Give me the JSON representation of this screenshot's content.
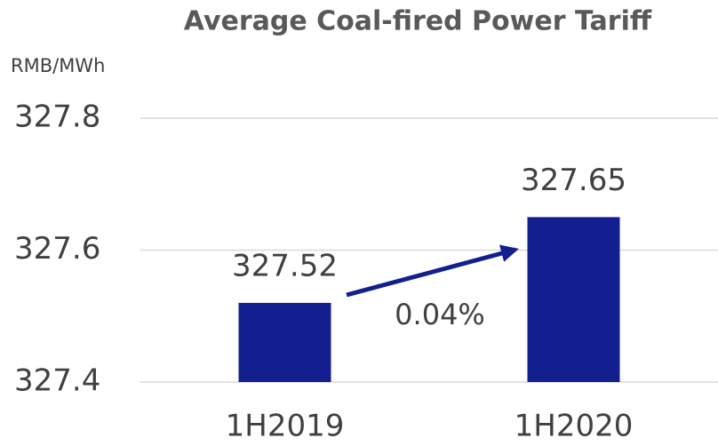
{
  "chart_data": {
    "type": "bar",
    "title": "Average Coal-fired Power Tariff",
    "y_axis_label": "RMB/MWh",
    "categories": [
      "1H2019",
      "1H2020"
    ],
    "values": [
      327.52,
      327.65
    ],
    "color": "#141f8f",
    "ylim": [
      327.4,
      327.8
    ],
    "yticks": [
      327.4,
      327.6,
      327.8
    ],
    "grid": true,
    "annotation": "0.04%"
  }
}
